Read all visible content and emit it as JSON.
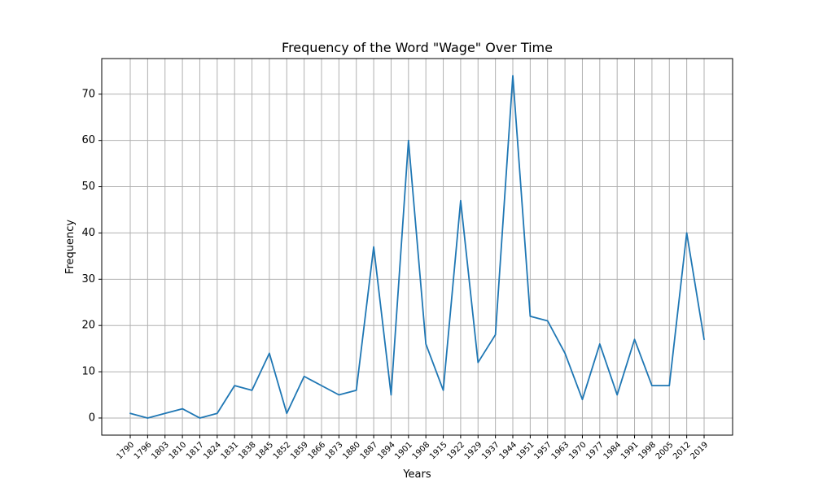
{
  "chart_data": {
    "type": "line",
    "title": "Frequency of the Word \"Wage\" Over Time",
    "xlabel": "Years",
    "ylabel": "Frequency",
    "grid": true,
    "ylim": [
      -3.7,
      77.7
    ],
    "yticks": [
      0,
      10,
      20,
      30,
      40,
      50,
      60,
      70
    ],
    "categories": [
      "1790",
      "1796",
      "1803",
      "1810",
      "1817",
      "1824",
      "1831",
      "1838",
      "1845",
      "1852",
      "1859",
      "1866",
      "1873",
      "1880",
      "1887",
      "1894",
      "1901",
      "1908",
      "1915",
      "1922",
      "1929",
      "1937",
      "1944",
      "1951",
      "1957",
      "1963",
      "1970",
      "1977",
      "1984",
      "1991",
      "1998",
      "2005",
      "2012",
      "2019"
    ],
    "series": [
      {
        "values": [
          1,
          0,
          1,
          2,
          0,
          1,
          7,
          6,
          14,
          1,
          9,
          7,
          5,
          6,
          37,
          5,
          60,
          16,
          6,
          47,
          12,
          18,
          74,
          22,
          21,
          14,
          4,
          16,
          5,
          17,
          7,
          7,
          40,
          17
        ]
      }
    ],
    "colors": {
      "line": "#1f77b4"
    }
  }
}
